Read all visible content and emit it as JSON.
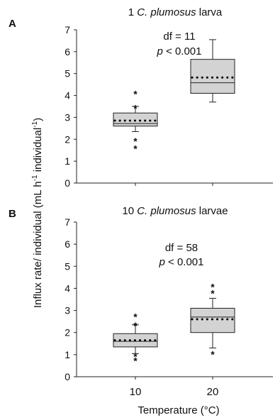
{
  "figure": {
    "ylabel_prefix": "Influx rate/ individual (mL h",
    "ylabel_sup1": "-1",
    "ylabel_mid": " individual",
    "ylabel_sup2": "-1",
    "ylabel_suffix": ")",
    "xlabel": "Temperature (°C)"
  },
  "chart_data": [
    {
      "type": "box",
      "panel_letter": "A",
      "title_prefix": "1 ",
      "title_italic": "C. plumosus",
      "title_suffix": " larva",
      "stats_line1": "df = 11",
      "stats_p_italic": "p",
      "stats_p_rest": " < 0.001",
      "categories": [
        "10",
        "20"
      ],
      "ylim": [
        0,
        7
      ],
      "yticks": [
        "0",
        "1",
        "2",
        "3",
        "4",
        "5",
        "6",
        "7"
      ],
      "boxes": [
        {
          "category": "10",
          "whisker_low": 2.35,
          "q1": 2.6,
          "median": 2.72,
          "q3": 3.2,
          "whisker_high": 3.5,
          "mean": 2.85,
          "outliers": [
            4.1,
            3.45,
            1.95,
            1.6
          ]
        },
        {
          "category": "20",
          "whisker_low": 3.7,
          "q1": 4.1,
          "median": 4.58,
          "q3": 5.65,
          "whisker_high": 6.55,
          "mean": 4.82,
          "outliers": []
        }
      ]
    },
    {
      "type": "box",
      "panel_letter": "B",
      "title_prefix": "10 ",
      "title_italic": "C. plumosus",
      "title_suffix": " larvae",
      "stats_line1": "df = 58",
      "stats_p_italic": "p",
      "stats_p_rest": " < 0.001",
      "categories": [
        "10",
        "20"
      ],
      "ylim": [
        0,
        7
      ],
      "yticks": [
        "0",
        "1",
        "2",
        "3",
        "4",
        "5",
        "6",
        "7"
      ],
      "boxes": [
        {
          "category": "10",
          "whisker_low": 1.05,
          "q1": 1.35,
          "median": 1.6,
          "q3": 1.95,
          "whisker_high": 2.35,
          "mean": 1.65,
          "outliers": [
            2.75,
            2.35,
            0.95,
            0.75
          ]
        },
        {
          "category": "20",
          "whisker_low": 1.3,
          "q1": 2.0,
          "median": 2.7,
          "q3": 3.1,
          "whisker_high": 3.55,
          "mean": 2.6,
          "outliers": [
            4.1,
            3.8,
            1.05
          ]
        }
      ]
    }
  ]
}
